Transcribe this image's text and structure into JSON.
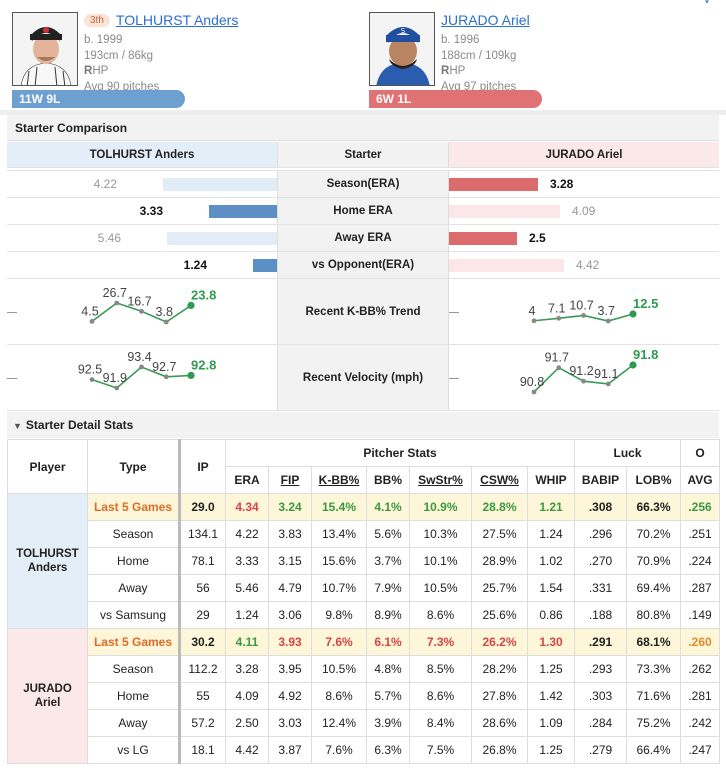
{
  "header": {
    "top_link": "v",
    "left_player": {
      "rank": "3th",
      "name": "TOLHURST Anders",
      "born": "b. 1999",
      "body": "193cm / 86kg",
      "hand_bold": "R",
      "hand_rest": "HP",
      "avg_pitches": "Avg 90 pitches",
      "record": "11W 9L",
      "color": "#6d9fd0"
    },
    "right_player": {
      "name": "JURADO Ariel",
      "born": "b. 1996",
      "body": "188cm / 109kg",
      "hand_bold": "R",
      "hand_rest": "HP",
      "avg_pitches": "Avg 97 pitches",
      "record": "6W 1L",
      "color": "#e07273"
    }
  },
  "comparison": {
    "title": "Starter Comparison",
    "left_name": "TOLHURST Anders",
    "mid_label": "Starter",
    "right_name": "JURADO Ariel",
    "rows": [
      {
        "label": "Season(ERA)",
        "left": "4.22",
        "right": "3.28",
        "left_frac": 0.57,
        "right_frac": 0.33,
        "winner": "right"
      },
      {
        "label": "Home ERA",
        "left": "3.33",
        "right": "4.09",
        "left_frac": 0.34,
        "right_frac": 0.41,
        "winner": "left"
      },
      {
        "label": "Away ERA",
        "left": "5.46",
        "right": "2.5",
        "left_frac": 0.55,
        "right_frac": 0.25,
        "winner": "right"
      },
      {
        "label": "vs Opponent(ERA)",
        "left": "1.24",
        "right": "4.42",
        "left_frac": 0.12,
        "right_frac": 0.44,
        "winner": "left"
      }
    ],
    "kbb": {
      "label": "Recent K-BB% Trend",
      "left": [
        "4.5",
        "26.7",
        "16.7",
        "3.8",
        "23.8"
      ],
      "right": [
        "4",
        "7.1",
        "10.7",
        "3.7",
        "12.5"
      ]
    },
    "velo": {
      "label": "Recent Velocity (mph)",
      "left": [
        "92.5",
        "91.9",
        "93.4",
        "92.7",
        "92.8"
      ],
      "right": [
        "90.8",
        "91.7",
        "91.2",
        "91.1",
        "91.8"
      ]
    }
  },
  "detail": {
    "title": "Starter Detail Stats",
    "head": {
      "player": "Player",
      "type": "Type",
      "ip": "IP",
      "pitcher_stats": "Pitcher Stats",
      "luck": "Luck",
      "other": "O",
      "cols": [
        "ERA",
        "FIP",
        "K-BB%",
        "BB%",
        "SwStr%",
        "CSW%",
        "WHIP",
        "BABIP",
        "LOB%",
        "AVG"
      ]
    },
    "players": [
      {
        "name_line1": "TOLHURST",
        "name_line2": "Anders",
        "rows": [
          {
            "type": "Last 5 Games",
            "ip": "29.0",
            "vals": [
              "4.34",
              "3.24",
              "15.4%",
              "4.1%",
              "10.9%",
              "28.8%",
              "1.21",
              ".308",
              "66.3%",
              ".256"
            ],
            "colors": [
              "red",
              "green",
              "green",
              "green",
              "green",
              "green",
              "green",
              "",
              "",
              "green"
            ]
          },
          {
            "type": "Season",
            "ip": "134.1",
            "vals": [
              "4.22",
              "3.83",
              "13.4%",
              "5.6%",
              "10.3%",
              "27.5%",
              "1.24",
              ".296",
              "70.2%",
              ".251"
            ]
          },
          {
            "type": "Home",
            "ip": "78.1",
            "vals": [
              "3.33",
              "3.15",
              "15.6%",
              "3.7%",
              "10.1%",
              "28.9%",
              "1.02",
              ".270",
              "70.9%",
              ".224"
            ]
          },
          {
            "type": "Away",
            "ip": "56",
            "vals": [
              "5.46",
              "4.79",
              "10.7%",
              "7.9%",
              "10.5%",
              "25.7%",
              "1.54",
              ".331",
              "69.4%",
              ".287"
            ]
          },
          {
            "type": "vs Samsung",
            "ip": "29",
            "vals": [
              "1.24",
              "3.06",
              "9.8%",
              "8.9%",
              "8.6%",
              "25.6%",
              "0.86",
              ".188",
              "80.8%",
              ".149"
            ]
          }
        ]
      },
      {
        "name_line1": "JURADO",
        "name_line2": "Ariel",
        "rows": [
          {
            "type": "Last 5 Games",
            "ip": "30.2",
            "vals": [
              "4.11",
              "3.93",
              "7.6%",
              "6.1%",
              "7.3%",
              "26.2%",
              "1.30",
              ".291",
              "68.1%",
              ".260"
            ],
            "colors": [
              "green",
              "red",
              "red",
              "red",
              "red",
              "red",
              "red",
              "",
              "",
              "orange"
            ]
          },
          {
            "type": "Season",
            "ip": "112.2",
            "vals": [
              "3.28",
              "3.95",
              "10.5%",
              "4.8%",
              "8.5%",
              "28.2%",
              "1.25",
              ".293",
              "73.3%",
              ".262"
            ]
          },
          {
            "type": "Home",
            "ip": "55",
            "vals": [
              "4.09",
              "4.92",
              "8.6%",
              "5.7%",
              "8.6%",
              "27.8%",
              "1.42",
              ".303",
              "71.6%",
              ".281"
            ]
          },
          {
            "type": "Away",
            "ip": "57.2",
            "vals": [
              "2.50",
              "3.03",
              "12.4%",
              "3.9%",
              "8.4%",
              "28.6%",
              "1.09",
              ".284",
              "75.2%",
              ".242"
            ]
          },
          {
            "type": "vs LG",
            "ip": "18.1",
            "vals": [
              "4.42",
              "3.87",
              "7.6%",
              "6.3%",
              "7.5%",
              "26.8%",
              "1.25",
              ".279",
              "66.4%",
              ".247"
            ]
          }
        ]
      }
    ]
  }
}
